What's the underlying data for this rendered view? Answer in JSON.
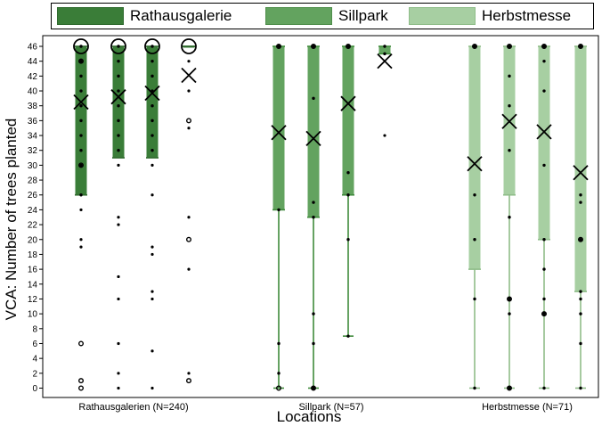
{
  "chart_data": {
    "type": "boxplot",
    "ylabel": "VCA: Number of trees planted",
    "xlabel": "Locations",
    "ylim": [
      0,
      46
    ],
    "yticks": [
      "0",
      "2",
      "4",
      "6",
      "8",
      "10",
      "12",
      "14",
      "16",
      "18",
      "20",
      "22",
      "24",
      "26",
      "28",
      "30",
      "32",
      "34",
      "36",
      "38",
      "40",
      "42",
      "44",
      "46"
    ],
    "groups": [
      {
        "name": "Rathausgalerie",
        "label": "Rathausgalerien (N=240)",
        "color": "#3a7d38",
        "boxes": [
          {
            "q1": 26,
            "median": 46,
            "q3": 46,
            "wlow": 26,
            "whigh": 46,
            "mean": 38.5,
            "small_points": [
              46,
              44,
              42,
              40,
              38,
              36,
              34,
              32,
              30,
              26
            ],
            "hollow_points": [
              46,
              44,
              30,
              6,
              1,
              0
            ],
            "outlier_dots": [
              24,
              20,
              19
            ]
          },
          {
            "q1": 31,
            "median": 46,
            "q3": 46,
            "wlow": 31,
            "whigh": 46,
            "mean": 39.2,
            "small_points": [
              46,
              44,
              42,
              40,
              38,
              36,
              34,
              32
            ],
            "hollow_points": [
              46
            ],
            "outlier_dots": [
              30,
              23,
              22,
              15,
              12,
              6,
              2,
              0
            ]
          },
          {
            "q1": 31,
            "median": 46,
            "q3": 46,
            "wlow": 31,
            "whigh": 46,
            "mean": 39.7,
            "small_points": [
              46,
              44,
              42,
              40,
              38,
              36,
              34,
              32
            ],
            "hollow_points": [
              46
            ],
            "outlier_dots": [
              30,
              26,
              19,
              18,
              13,
              12,
              5,
              0
            ]
          },
          {
            "q1": 46,
            "median": 46,
            "q3": 46,
            "wlow": 46,
            "whigh": 46,
            "mean": 42.1,
            "small_points": [],
            "hollow_points": [
              46,
              36,
              20,
              1
            ],
            "outlier_dots": [
              44,
              40,
              35,
              23,
              16,
              2
            ]
          }
        ]
      },
      {
        "name": "Sillpark",
        "label": "Sillpark (N=57)",
        "color": "#63a35f",
        "boxes": [
          {
            "q1": 24,
            "median": 46,
            "q3": 46,
            "wlow": 0,
            "whigh": 46,
            "mean": 34.4,
            "small_points": [
              46,
              24,
              6,
              2
            ],
            "hollow_points": [
              46,
              0
            ],
            "outlier_dots": []
          },
          {
            "q1": 23,
            "median": 46,
            "q3": 46,
            "wlow": 0,
            "whigh": 46,
            "mean": 33.6,
            "small_points": [
              46,
              39,
              25,
              23,
              10,
              6,
              0
            ],
            "hollow_points": [
              46,
              0
            ],
            "outlier_dots": []
          },
          {
            "q1": 26,
            "median": 46,
            "q3": 46,
            "wlow": 7,
            "whigh": 46,
            "mean": 38.3,
            "small_points": [
              46,
              29,
              26,
              20,
              7
            ],
            "hollow_points": [
              46
            ],
            "outlier_dots": []
          },
          {
            "q1": 45,
            "median": 46,
            "q3": 46,
            "wlow": 45,
            "whigh": 46,
            "mean": 44.0,
            "small_points": [
              46,
              45
            ],
            "hollow_points": [],
            "outlier_dots": [
              34
            ]
          }
        ]
      },
      {
        "name": "Herbstmesse",
        "label": "Herbstmesse (N=71)",
        "color": "#a7cfa2",
        "boxes": [
          {
            "q1": 16,
            "median": 46,
            "q3": 46,
            "wlow": 0,
            "whigh": 46,
            "mean": 30.2,
            "small_points": [
              46,
              26,
              20,
              12,
              0
            ],
            "hollow_points": [
              46
            ],
            "outlier_dots": []
          },
          {
            "q1": 26,
            "median": 46,
            "q3": 46,
            "wlow": 0,
            "whigh": 46,
            "mean": 35.9,
            "small_points": [
              46,
              42,
              38,
              32,
              23,
              12,
              10,
              0
            ],
            "hollow_points": [
              46,
              12,
              0
            ],
            "outlier_dots": []
          },
          {
            "q1": 20,
            "median": 46,
            "q3": 46,
            "wlow": 0,
            "whigh": 46,
            "mean": 34.5,
            "small_points": [
              46,
              44,
              40,
              30,
              20,
              16,
              12,
              10,
              0
            ],
            "hollow_points": [
              46,
              10
            ],
            "outlier_dots": []
          },
          {
            "q1": 13,
            "median": 46,
            "q3": 46,
            "wlow": 0,
            "whigh": 46,
            "mean": 29.0,
            "small_points": [
              46,
              26,
              25,
              20,
              13,
              12,
              10,
              6,
              0
            ],
            "hollow_points": [
              46,
              20
            ],
            "outlier_dots": []
          }
        ]
      }
    ],
    "legend": [
      "Rathausgalerie",
      "Sillpark",
      "Herbstmesse"
    ]
  }
}
